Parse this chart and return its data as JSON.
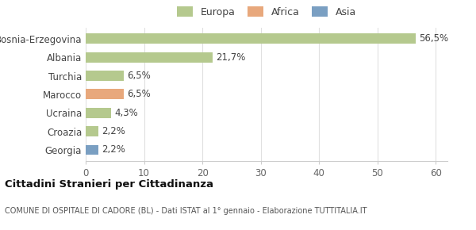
{
  "categories": [
    "Bosnia-Erzegovina",
    "Albania",
    "Turchia",
    "Marocco",
    "Ucraina",
    "Croazia",
    "Georgia"
  ],
  "values": [
    56.5,
    21.7,
    6.5,
    6.5,
    4.3,
    2.2,
    2.2
  ],
  "labels": [
    "56,5%",
    "21,7%",
    "6,5%",
    "6,5%",
    "4,3%",
    "2,2%",
    "2,2%"
  ],
  "bar_colors": [
    "#b5c98e",
    "#b5c98e",
    "#b5c98e",
    "#e8a87c",
    "#b5c98e",
    "#b5c98e",
    "#7a9fc2"
  ],
  "legend_labels": [
    "Europa",
    "Africa",
    "Asia"
  ],
  "legend_colors": [
    "#b5c98e",
    "#e8a87c",
    "#7a9fc2"
  ],
  "xlim": [
    0,
    62
  ],
  "xticks": [
    0,
    10,
    20,
    30,
    40,
    50,
    60
  ],
  "title_main": "Cittadini Stranieri per Cittadinanza",
  "title_sub": "COMUNE DI OSPITALE DI CADORE (BL) - Dati ISTAT al 1° gennaio - Elaborazione TUTTITALIA.IT",
  "bg_color": "#ffffff",
  "bar_height": 0.55,
  "label_fontsize": 8.5,
  "tick_fontsize": 8.5
}
